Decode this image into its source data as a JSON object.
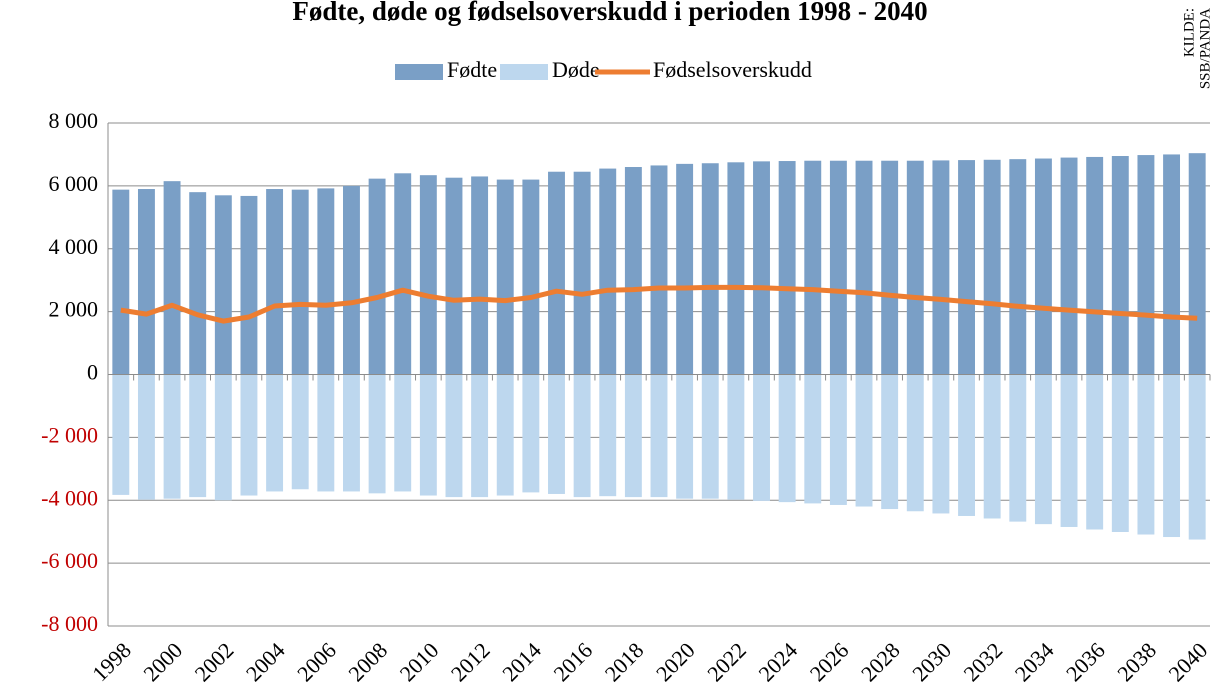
{
  "chart_data": {
    "type": "bar",
    "title": "Fødte, døde og fødselsoverskudd i perioden 1998 - 2040",
    "annotation": [
      "KILDE:",
      "SSB/PANDA"
    ],
    "categories": [
      "1998",
      null,
      "2000",
      null,
      "2002",
      null,
      "2004",
      null,
      "2006",
      null,
      "2008",
      null,
      "2010",
      null,
      "2012",
      null,
      "2014",
      null,
      "2016",
      null,
      "2018",
      null,
      "2020",
      null,
      "2022",
      null,
      "2024",
      null,
      "2026",
      null,
      "2028",
      null,
      "2030",
      null,
      "2032",
      null,
      "2034",
      null,
      "2036",
      null,
      "2038",
      null,
      "2040"
    ],
    "series": [
      {
        "name": "Fødte",
        "type": "bar",
        "color": "#7a9fc6",
        "values": [
          5880,
          5900,
          6150,
          5800,
          5700,
          5680,
          5900,
          5880,
          5920,
          6000,
          6230,
          6400,
          6340,
          6260,
          6300,
          6200,
          6200,
          6450,
          6450,
          6550,
          6600,
          6650,
          6700,
          6720,
          6750,
          6780,
          6790,
          6800,
          6800,
          6800,
          6800,
          6800,
          6810,
          6820,
          6830,
          6850,
          6870,
          6900,
          6920,
          6950,
          6980,
          7000,
          7040
        ]
      },
      {
        "name": "Døde",
        "type": "bar",
        "color": "#bdd7ee",
        "values": [
          -3830,
          -3980,
          -3950,
          -3900,
          -4000,
          -3850,
          -3720,
          -3650,
          -3720,
          -3720,
          -3780,
          -3720,
          -3850,
          -3900,
          -3900,
          -3850,
          -3750,
          -3800,
          -3900,
          -3870,
          -3900,
          -3900,
          -3950,
          -3950,
          -3980,
          -4020,
          -4060,
          -4100,
          -4150,
          -4200,
          -4280,
          -4350,
          -4420,
          -4500,
          -4580,
          -4680,
          -4760,
          -4850,
          -4930,
          -5010,
          -5090,
          -5170,
          -5250
        ]
      },
      {
        "name": "Fødselsoverskudd",
        "type": "line",
        "color": "#ed7d31",
        "values": [
          2050,
          1920,
          2200,
          1900,
          1700,
          1830,
          2180,
          2230,
          2200,
          2280,
          2450,
          2680,
          2490,
          2360,
          2400,
          2350,
          2450,
          2650,
          2550,
          2680,
          2700,
          2750,
          2750,
          2770,
          2770,
          2760,
          2730,
          2700,
          2650,
          2600,
          2520,
          2450,
          2390,
          2320,
          2250,
          2170,
          2110,
          2050,
          1990,
          1940,
          1890,
          1830,
          1790
        ]
      }
    ],
    "ylim": [
      -8000,
      8000
    ],
    "yticks": [
      {
        "value": -8000,
        "label": "-8 000"
      },
      {
        "value": -6000,
        "label": "-6 000"
      },
      {
        "value": -4000,
        "label": "-4 000"
      },
      {
        "value": -2000,
        "label": "-2 000"
      },
      0,
      {
        "value": 2000,
        "label": "2 000"
      },
      {
        "value": 4000,
        "label": "4 000"
      },
      {
        "value": 6000,
        "label": "6 000"
      },
      {
        "value": 8000,
        "label": "8 000"
      }
    ],
    "negative_tick_color": "#c00000",
    "grid": true,
    "legend": "top"
  }
}
